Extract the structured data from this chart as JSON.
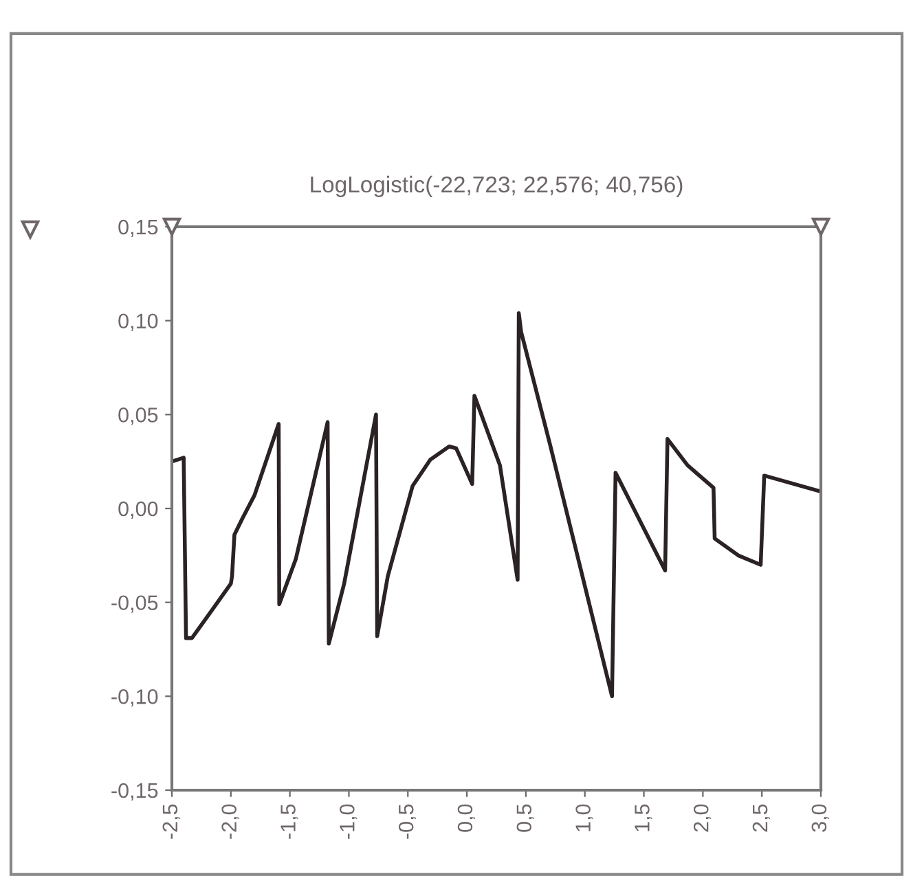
{
  "chart_data": {
    "type": "line",
    "title": "LogLogistic(-22,723; 22,576; 40,756)",
    "series": [
      {
        "color": "#2b2224",
        "x": [
          -2.5,
          -2.4,
          -2.38,
          -2.33,
          -2.17,
          -2.0,
          -1.99,
          -1.97,
          -1.9,
          -1.8,
          -1.595,
          -1.59,
          -1.45,
          -1.18,
          -1.17,
          -1.04,
          -0.77,
          -0.76,
          -0.67,
          -0.46,
          -0.31,
          -0.15,
          -0.09,
          0.045,
          0.064,
          0.28,
          0.43,
          0.44,
          0.46,
          0.705,
          1.23,
          1.26,
          1.68,
          1.7,
          1.87,
          2.09,
          2.1,
          2.3,
          2.49,
          2.52,
          3.0
        ],
        "values": [
          0.025,
          0.027,
          -0.069,
          -0.069,
          -0.055,
          -0.04,
          -0.036,
          -0.014,
          -0.005,
          0.007,
          0.045,
          -0.051,
          -0.027,
          0.046,
          -0.072,
          -0.04,
          0.05,
          -0.068,
          -0.036,
          0.012,
          0.026,
          0.033,
          0.032,
          0.013,
          0.06,
          0.023,
          -0.038,
          0.104,
          0.094,
          0.034,
          -0.1,
          0.019,
          -0.033,
          0.037,
          0.023,
          0.011,
          -0.016,
          -0.025,
          -0.03,
          0.0175,
          0.009
        ]
      }
    ],
    "xlim": [
      -2.5,
      3.0
    ],
    "ylim": [
      -0.15,
      0.15
    ],
    "xticks": [
      {
        "value": -2.5,
        "label": "-2,5"
      },
      {
        "value": -2.0,
        "label": "-2,0"
      },
      {
        "value": -1.5,
        "label": "-1,5"
      },
      {
        "value": -1.0,
        "label": "-1,0"
      },
      {
        "value": -0.5,
        "label": "-0,5"
      },
      {
        "value": 0.0,
        "label": "0,0"
      },
      {
        "value": 0.5,
        "label": "0,5"
      },
      {
        "value": 1.0,
        "label": "1,0"
      },
      {
        "value": 1.5,
        "label": "1,5"
      },
      {
        "value": 2.0,
        "label": "2,0"
      },
      {
        "value": 2.5,
        "label": "2,5"
      },
      {
        "value": 3.0,
        "label": "3,0"
      }
    ],
    "yticks": [
      {
        "value": -0.15,
        "label": "-0,15"
      },
      {
        "value": -0.1,
        "label": "-0,10"
      },
      {
        "value": -0.05,
        "label": "-0,05"
      },
      {
        "value": 0.0,
        "label": "0,00"
      },
      {
        "value": 0.05,
        "label": "0,05"
      },
      {
        "value": 0.1,
        "label": "0,10"
      },
      {
        "value": 0.15,
        "label": "0,15"
      }
    ],
    "grid": false,
    "marker": "none",
    "line_style": "solid"
  }
}
